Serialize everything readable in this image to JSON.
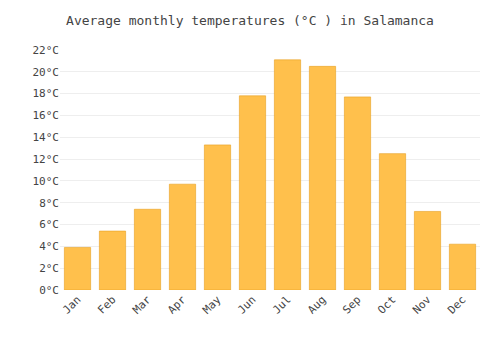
{
  "chart_data": {
    "type": "bar",
    "title": "Average monthly temperatures (°C ) in Salamanca",
    "categories": [
      "Jan",
      "Feb",
      "Mar",
      "Apr",
      "May",
      "Jun",
      "Jul",
      "Aug",
      "Sep",
      "Oct",
      "Nov",
      "Dec"
    ],
    "values": [
      3.9,
      5.4,
      7.4,
      9.7,
      13.3,
      17.8,
      21.1,
      20.5,
      17.7,
      12.5,
      7.2,
      4.2
    ],
    "color": "#FFC04C",
    "ylim": [
      0,
      22
    ],
    "yticks": [
      {
        "value": 0,
        "label": "0°C"
      },
      {
        "value": 2,
        "label": "2°C"
      },
      {
        "value": 4,
        "label": "4°C"
      },
      {
        "value": 6,
        "label": "6°C"
      },
      {
        "value": 8,
        "label": "8°C"
      },
      {
        "value": 10,
        "label": "10°C"
      },
      {
        "value": 12,
        "label": "12°C"
      },
      {
        "value": 14,
        "label": "14°C"
      },
      {
        "value": 16,
        "label": "16°C"
      },
      {
        "value": 18,
        "label": "18°C"
      },
      {
        "value": 20,
        "label": "20°C"
      },
      {
        "value": 22,
        "label": "22°C"
      }
    ],
    "grid": true
  }
}
